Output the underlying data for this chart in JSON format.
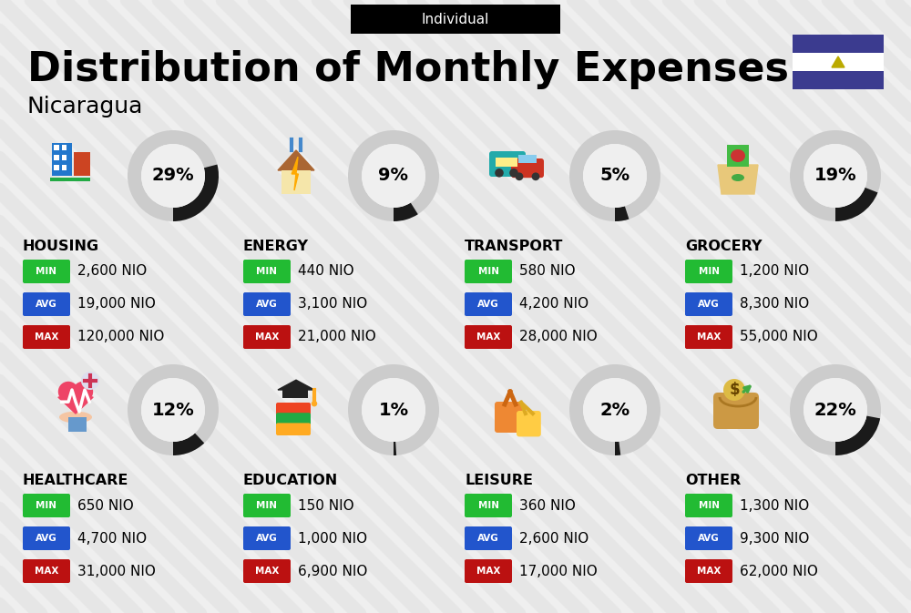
{
  "title": "Distribution of Monthly Expenses",
  "subtitle": "Individual",
  "country": "Nicaragua",
  "bg_color": "#efefef",
  "categories": [
    {
      "name": "HOUSING",
      "pct": 29,
      "min_val": "2,600 NIO",
      "avg_val": "19,000 NIO",
      "max_val": "120,000 NIO",
      "row": 0,
      "col": 0
    },
    {
      "name": "ENERGY",
      "pct": 9,
      "min_val": "440 NIO",
      "avg_val": "3,100 NIO",
      "max_val": "21,000 NIO",
      "row": 0,
      "col": 1
    },
    {
      "name": "TRANSPORT",
      "pct": 5,
      "min_val": "580 NIO",
      "avg_val": "4,200 NIO",
      "max_val": "28,000 NIO",
      "row": 0,
      "col": 2
    },
    {
      "name": "GROCERY",
      "pct": 19,
      "min_val": "1,200 NIO",
      "avg_val": "8,300 NIO",
      "max_val": "55,000 NIO",
      "row": 0,
      "col": 3
    },
    {
      "name": "HEALTHCARE",
      "pct": 12,
      "min_val": "650 NIO",
      "avg_val": "4,700 NIO",
      "max_val": "31,000 NIO",
      "row": 1,
      "col": 0
    },
    {
      "name": "EDUCATION",
      "pct": 1,
      "min_val": "150 NIO",
      "avg_val": "1,000 NIO",
      "max_val": "6,900 NIO",
      "row": 1,
      "col": 1
    },
    {
      "name": "LEISURE",
      "pct": 2,
      "min_val": "360 NIO",
      "avg_val": "2,600 NIO",
      "max_val": "17,000 NIO",
      "row": 1,
      "col": 2
    },
    {
      "name": "OTHER",
      "pct": 22,
      "min_val": "1,300 NIO",
      "avg_val": "9,300 NIO",
      "max_val": "62,000 NIO",
      "row": 1,
      "col": 3
    }
  ],
  "color_min": "#22bb33",
  "color_avg": "#2255cc",
  "color_max": "#bb1111",
  "donut_dark": "#1a1a1a",
  "donut_light": "#cccccc",
  "flag_color": "#3b3b8f",
  "flag_white": "#ffffff"
}
